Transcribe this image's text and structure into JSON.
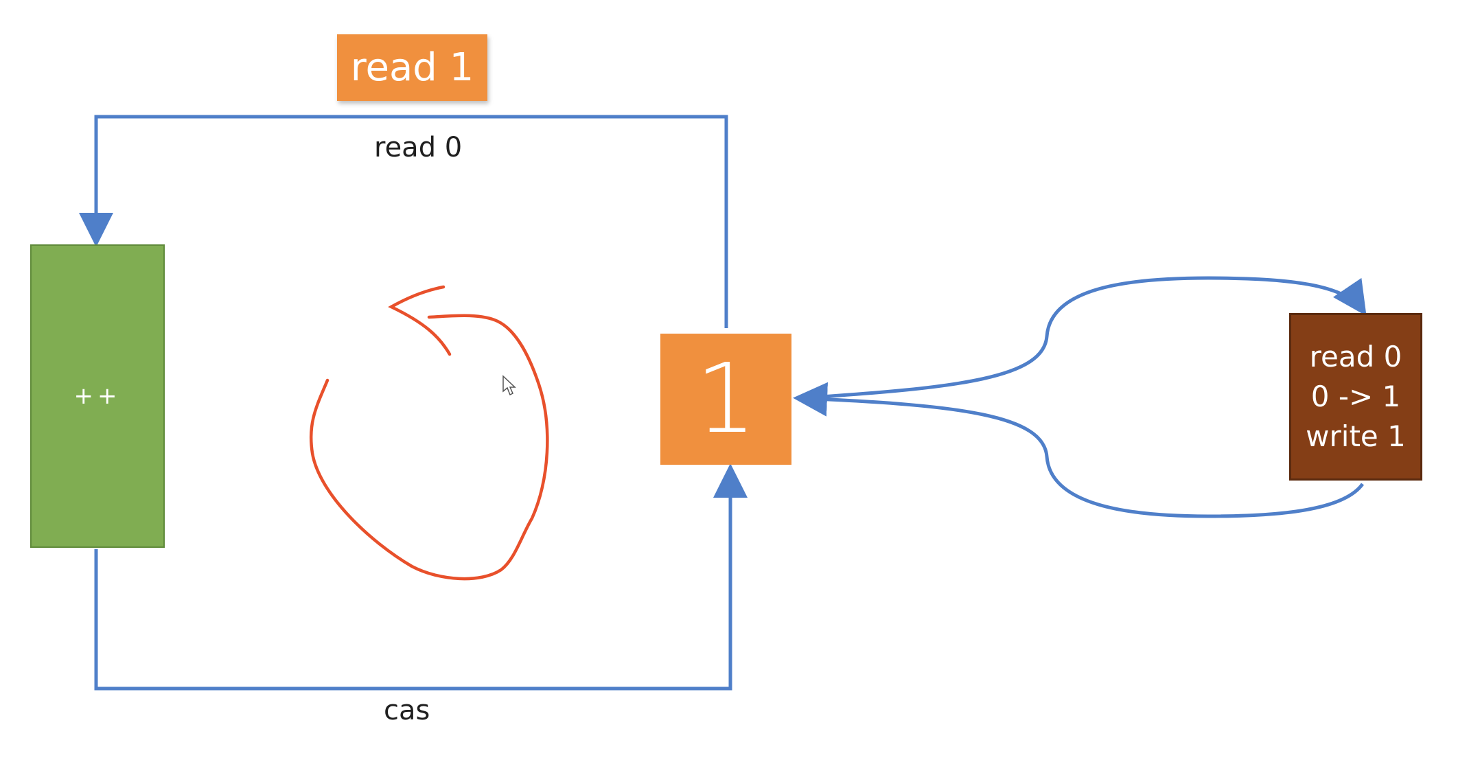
{
  "diagram": {
    "top_tag": "read 1",
    "top_edge_label": "read 0",
    "bottom_edge_label": "cas",
    "increment_box": "++",
    "value_box": "1",
    "other_thread": {
      "line1": "read 0",
      "line2": "0 -> 1",
      "line3": "write 1"
    }
  },
  "colors": {
    "connector": "#4f7fc9",
    "orange": "#f0903e",
    "green": "#80ad52",
    "brown": "#843e16",
    "scribble": "#e8502b"
  }
}
